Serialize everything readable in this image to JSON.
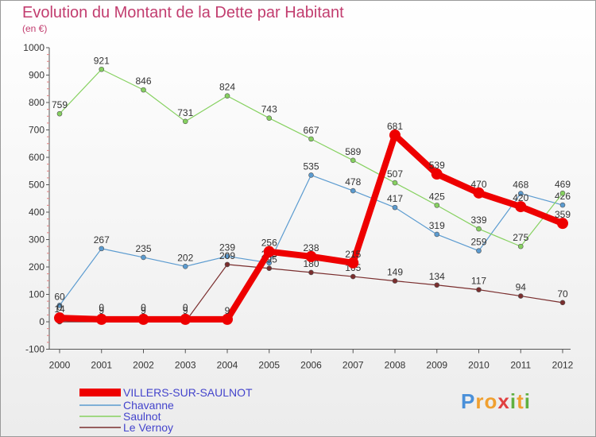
{
  "chart_data": {
    "type": "line",
    "title": "Evolution du Montant de la Dette par Habitant",
    "subtitle": "(en €)",
    "x": [
      "2000",
      "2001",
      "2002",
      "2003",
      "2004",
      "2005",
      "2006",
      "2007",
      "2008",
      "2009",
      "2010",
      "2011",
      "2012"
    ],
    "ylim": [
      -100,
      1000
    ],
    "yticks": [
      -100,
      0,
      100,
      200,
      300,
      400,
      500,
      600,
      700,
      800,
      900,
      1000
    ],
    "grid": false,
    "series": [
      {
        "name": "Chavanne",
        "color": "#5b9bd0",
        "values": [
          60,
          267,
          235,
          202,
          239,
          215,
          535,
          478,
          417,
          319,
          259,
          468,
          426
        ],
        "labels": [
          "60",
          "267",
          "235",
          "202",
          "239",
          "215",
          "535",
          "478",
          "417",
          "319",
          "259",
          "468",
          "426"
        ]
      },
      {
        "name": "Saulnot",
        "color": "#86d160",
        "values": [
          759,
          921,
          846,
          731,
          824,
          743,
          667,
          589,
          507,
          425,
          339,
          275,
          469
        ],
        "labels": [
          "759",
          "921",
          "846",
          "731",
          "824",
          "743",
          "667",
          "589",
          "507",
          "425",
          "339",
          "275",
          "469"
        ]
      },
      {
        "name": "Le Vernoy",
        "color": "#7a2e2e",
        "values": [
          0,
          0,
          0,
          0,
          209,
          195,
          180,
          165,
          149,
          134,
          117,
          94,
          70
        ],
        "labels": [
          "",
          "",
          "",
          "",
          "209",
          "195",
          "180",
          "165",
          "149",
          "134",
          "117",
          "94",
          "70"
        ]
      },
      {
        "name": "VILLERS-SUR-SAULNOT",
        "color": "#ee0000",
        "values": [
          14,
          9,
          9,
          9,
          9,
          256,
          238,
          215,
          681,
          539,
          470,
          420,
          359
        ],
        "labels": [
          "14",
          "9",
          "9",
          "9",
          "9",
          "256",
          "238",
          "215",
          "681",
          "539",
          "470",
          "420",
          "359"
        ]
      }
    ],
    "legend": [
      "VILLERS-SUR-SAULNOT",
      "Chavanne",
      "Saulnot",
      "Le Vernoy"
    ]
  },
  "extra_labels": [
    "0",
    "0",
    "0",
    "0"
  ],
  "logo": {
    "letters": [
      "P",
      "r",
      "o",
      "x",
      "i",
      "t",
      "i"
    ],
    "colors": [
      "#4a90d9",
      "#f0a030",
      "#f0a030",
      "#e04040",
      "#60b040",
      "#f0a030",
      "#60b040"
    ]
  }
}
